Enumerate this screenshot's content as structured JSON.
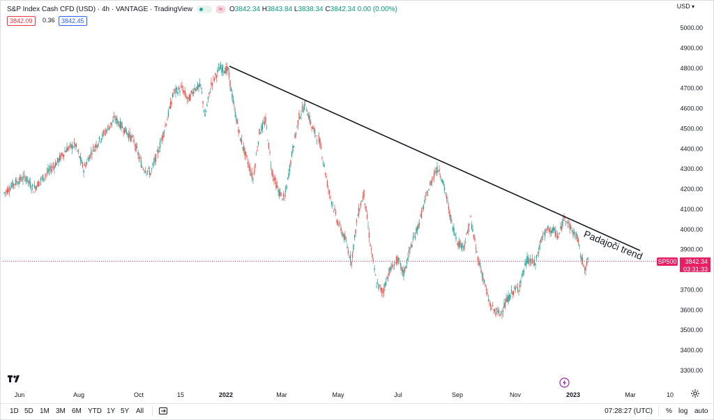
{
  "header": {
    "title": "S&P Index Cash CFD (USD) · 4h · VANTAGE · TradingView",
    "toggle_icon": "eye-dot-icon",
    "compare_icon": "approx-icon",
    "compare_glyph": "≈",
    "ohlc": {
      "o_label": "O",
      "o": "3842.34",
      "h_label": "H",
      "h": "3843.84",
      "l_label": "L",
      "l": "3838.34",
      "c_label": "C",
      "c": "3842.34",
      "change": "0.00 (0.00%)"
    },
    "bid": "3842.09",
    "spread": "0.36",
    "ask": "3842.45"
  },
  "currency": "USD",
  "last_price": {
    "symbol": "SP500",
    "price": "3842.34",
    "countdown": "03:31:33"
  },
  "annotation": "Padajoči trend",
  "bottom_bar": {
    "ranges": [
      "1D",
      "5D",
      "1M",
      "3M",
      "6M",
      "YTD",
      "1Y",
      "5Y",
      "All"
    ],
    "time": "07:28:27 (UTC)",
    "options": [
      "%",
      "log",
      "auto"
    ]
  },
  "colors": {
    "up": "#26a69a",
    "down": "#ef5350",
    "trendline": "#131722",
    "last_price": "#e91e63"
  },
  "chart_data": {
    "type": "candlestick",
    "title": "S&P Index Cash CFD (USD)",
    "timeframe": "4h",
    "yticks": [
      3300,
      3400,
      3500,
      3600,
      3700,
      3800,
      3900,
      4000,
      4100,
      4200,
      4300,
      4400,
      4500,
      4600,
      4700,
      4800,
      4900,
      5000
    ],
    "ylim": [
      3200,
      5090
    ],
    "xticks": [
      {
        "label": "Jun",
        "bold": false
      },
      {
        "label": "Aug",
        "bold": false
      },
      {
        "label": "Oct",
        "bold": false
      },
      {
        "label": "15",
        "bold": false
      },
      {
        "label": "2022",
        "bold": true
      },
      {
        "label": "Mar",
        "bold": false
      },
      {
        "label": "May",
        "bold": false
      },
      {
        "label": "Jul",
        "bold": false
      },
      {
        "label": "Sep",
        "bold": false
      },
      {
        "label": "Nov",
        "bold": false
      },
      {
        "label": "2023",
        "bold": true
      },
      {
        "label": "Mar",
        "bold": false
      },
      {
        "label": "10",
        "bold": false
      }
    ],
    "price_path": [
      [
        0,
        4180
      ],
      [
        5,
        4230
      ],
      [
        10,
        4260
      ],
      [
        14,
        4200
      ],
      [
        18,
        4250
      ],
      [
        25,
        4330
      ],
      [
        30,
        4400
      ],
      [
        34,
        4420
      ],
      [
        38,
        4300
      ],
      [
        42,
        4390
      ],
      [
        48,
        4480
      ],
      [
        53,
        4550
      ],
      [
        58,
        4490
      ],
      [
        62,
        4440
      ],
      [
        66,
        4310
      ],
      [
        70,
        4280
      ],
      [
        74,
        4400
      ],
      [
        78,
        4550
      ],
      [
        81,
        4680
      ],
      [
        85,
        4700
      ],
      [
        88,
        4640
      ],
      [
        91,
        4700
      ],
      [
        94,
        4710
      ],
      [
        96,
        4560
      ],
      [
        99,
        4720
      ],
      [
        103,
        4800
      ],
      [
        107,
        4790
      ],
      [
        110,
        4600
      ],
      [
        113,
        4450
      ],
      [
        116,
        4350
      ],
      [
        119,
        4250
      ],
      [
        122,
        4480
      ],
      [
        125,
        4540
      ],
      [
        128,
        4290
      ],
      [
        131,
        4190
      ],
      [
        134,
        4150
      ],
      [
        138,
        4400
      ],
      [
        141,
        4560
      ],
      [
        144,
        4620
      ],
      [
        147,
        4510
      ],
      [
        151,
        4430
      ],
      [
        155,
        4200
      ],
      [
        159,
        4050
      ],
      [
        163,
        3950
      ],
      [
        166,
        3840
      ],
      [
        169,
        4070
      ],
      [
        172,
        4180
      ],
      [
        175,
        3930
      ],
      [
        178,
        3730
      ],
      [
        181,
        3690
      ],
      [
        184,
        3790
      ],
      [
        188,
        3850
      ],
      [
        191,
        3780
      ],
      [
        194,
        3900
      ],
      [
        198,
        4020
      ],
      [
        202,
        4170
      ],
      [
        206,
        4290
      ],
      [
        208,
        4300
      ],
      [
        211,
        4180
      ],
      [
        214,
        4030
      ],
      [
        217,
        3930
      ],
      [
        220,
        3920
      ],
      [
        223,
        4050
      ],
      [
        226,
        3880
      ],
      [
        229,
        3760
      ],
      [
        232,
        3630
      ],
      [
        234,
        3600
      ],
      [
        237,
        3580
      ],
      [
        240,
        3640
      ],
      [
        243,
        3690
      ],
      [
        246,
        3710
      ],
      [
        250,
        3850
      ],
      [
        254,
        3830
      ],
      [
        257,
        3960
      ],
      [
        260,
        4000
      ],
      [
        263,
        3990
      ],
      [
        265,
        3960
      ],
      [
        268,
        4070
      ],
      [
        271,
        4000
      ],
      [
        274,
        3960
      ],
      [
        276,
        3850
      ],
      [
        278,
        3810
      ],
      [
        279,
        3842
      ]
    ],
    "trendline": {
      "from": [
        103,
        4810
      ],
      "to": [
        310,
        3895
      ]
    },
    "last_value": 3842.34
  }
}
